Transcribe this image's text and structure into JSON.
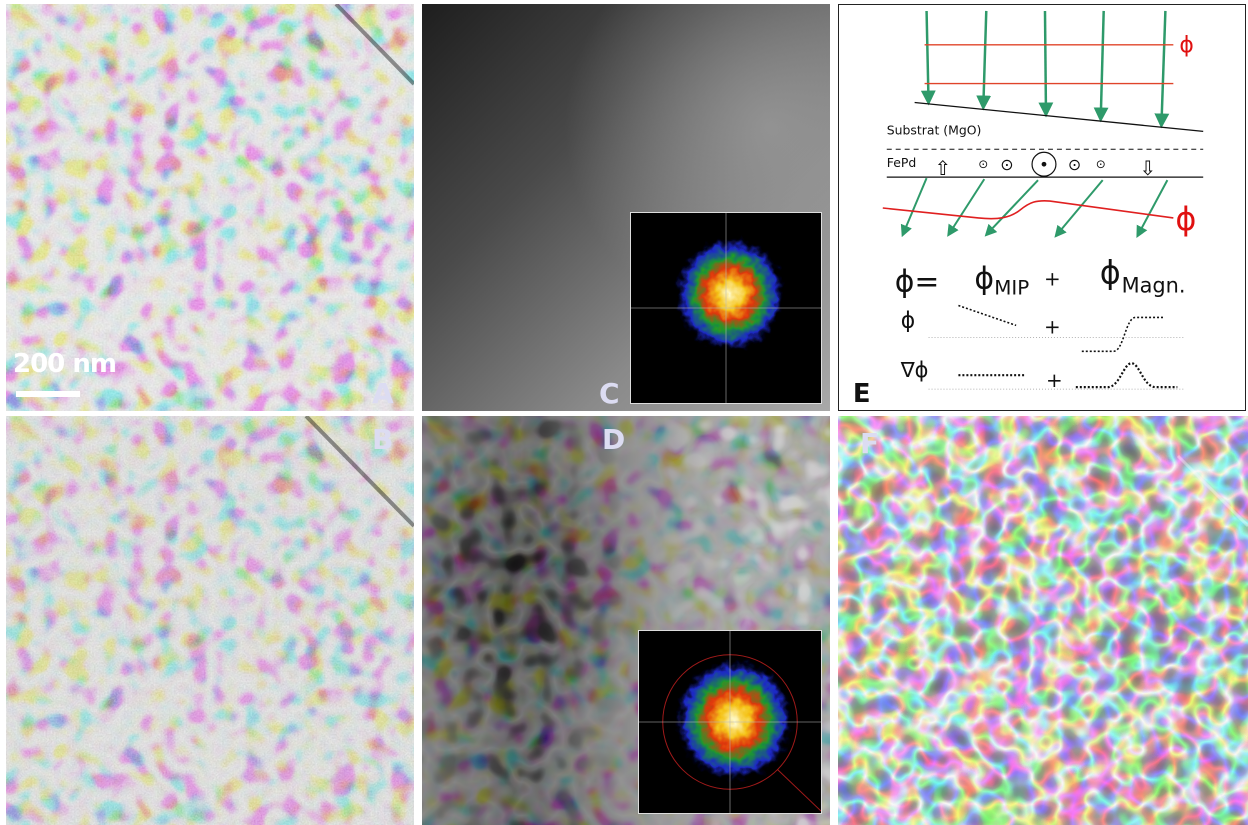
{
  "panels": {
    "a": {
      "label": "A",
      "scale_text": "200 nm"
    },
    "b": {
      "label": "B"
    },
    "c": {
      "label": "C"
    },
    "d": {
      "label": "D"
    },
    "e": {
      "label": "E",
      "phi_top": "ϕ",
      "phi_bottom": "ϕ",
      "substrate_label": "Substrat  (MgO)",
      "fepd_label": "FePd",
      "eq_lhs": "ϕ=",
      "eq_mip_symbol": "ϕ",
      "eq_mip_sub": "MIP",
      "eq_plus": "+",
      "eq_magn_symbol": "ϕ",
      "eq_magn_sub": "Magn.",
      "row1_symbol": "ϕ",
      "row1_plus": "+",
      "row2_symbol": "∇ϕ",
      "row2_plus": "+",
      "up_arrow": "⇧",
      "down_arrow": "⇩",
      "dot_symbol": "⊙"
    },
    "f": {
      "label": "F"
    }
  },
  "colors": {
    "beam_arrow": "#2e9a6a",
    "phase_line": "#e0442a",
    "phase_text": "#e01010",
    "label_color": "#dcdcf2"
  }
}
